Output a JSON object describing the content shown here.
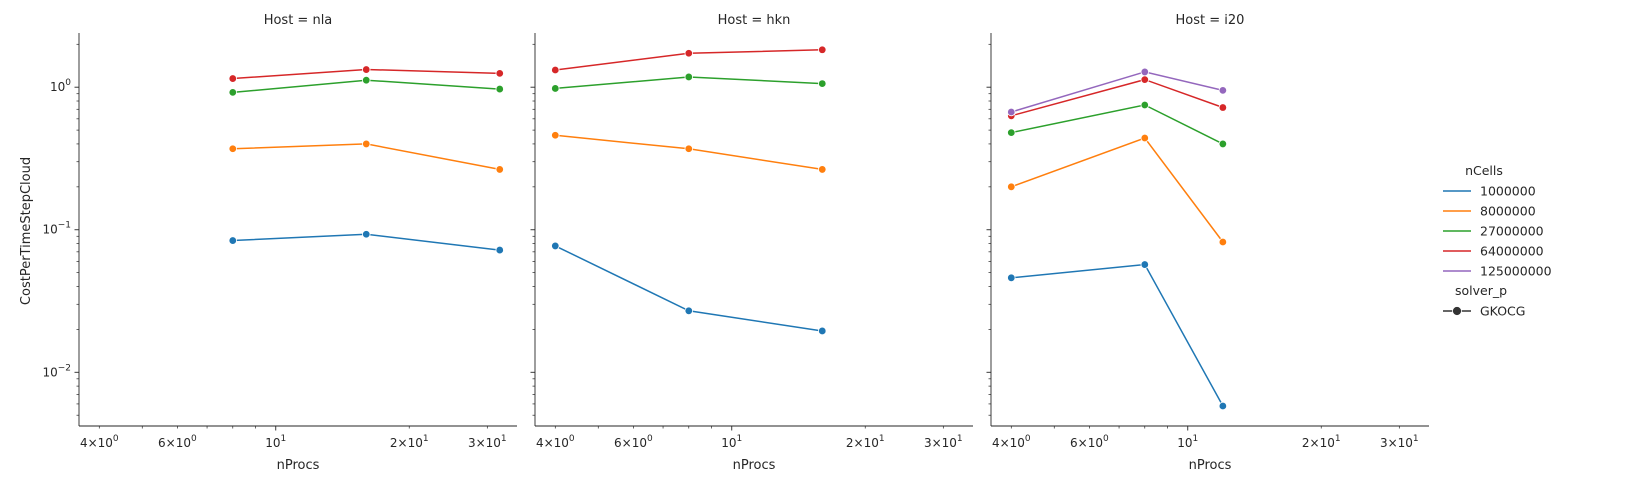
{
  "chart_data": {
    "type": "line",
    "xscale": "log",
    "yscale": "log",
    "xlim": [
      3.6,
      35
    ],
    "ylim": [
      0.0042,
      2.4
    ],
    "xlabel": "nProcs",
    "ylabel": "CostPerTimeStepCloud",
    "x_ticks": [
      {
        "value": 4,
        "base": "4",
        "exp": "0"
      },
      {
        "value": 6,
        "base": "6",
        "exp": "0"
      },
      {
        "value": 10,
        "base": "10",
        "exp": "1"
      },
      {
        "value": 20,
        "base": "2",
        "exp": "1"
      },
      {
        "value": 30,
        "base": "3",
        "exp": "1"
      }
    ],
    "y_ticks": [
      {
        "value": 1,
        "base": "10",
        "exp": "0"
      },
      {
        "value": 0.1,
        "base": "10",
        "exp": "−1"
      },
      {
        "value": 0.01,
        "base": "10",
        "exp": "−2"
      }
    ],
    "legend": {
      "placement": "right",
      "hue_title": "nCells",
      "style_title": "solver_p",
      "style_items": [
        "GKOCG"
      ]
    },
    "series_colors": {
      "1000000": "#1f77b4",
      "8000000": "#ff7f0e",
      "27000000": "#2ca02c",
      "64000000": "#d62728",
      "125000000": "#9467bd"
    },
    "series_order": [
      "1000000",
      "8000000",
      "27000000",
      "64000000",
      "125000000"
    ],
    "panels": [
      {
        "title": "Host = nla",
        "series": [
          {
            "name": "1000000",
            "x": [
              8,
              16,
              32
            ],
            "y": [
              0.084,
              0.093,
              0.072
            ]
          },
          {
            "name": "8000000",
            "x": [
              8,
              16,
              32
            ],
            "y": [
              0.37,
              0.4,
              0.265
            ]
          },
          {
            "name": "27000000",
            "x": [
              8,
              16,
              32
            ],
            "y": [
              0.92,
              1.12,
              0.97
            ]
          },
          {
            "name": "64000000",
            "x": [
              8,
              16,
              32
            ],
            "y": [
              1.15,
              1.33,
              1.25
            ]
          }
        ]
      },
      {
        "title": "Host = hkn",
        "series": [
          {
            "name": "1000000",
            "x": [
              4,
              8,
              16
            ],
            "y": [
              0.077,
              0.027,
              0.0195
            ]
          },
          {
            "name": "8000000",
            "x": [
              4,
              8,
              16
            ],
            "y": [
              0.46,
              0.37,
              0.265
            ]
          },
          {
            "name": "27000000",
            "x": [
              4,
              8,
              16
            ],
            "y": [
              0.98,
              1.18,
              1.06
            ]
          },
          {
            "name": "64000000",
            "x": [
              4,
              8,
              16
            ],
            "y": [
              1.32,
              1.73,
              1.83
            ]
          }
        ]
      },
      {
        "title": "Host = i20",
        "series": [
          {
            "name": "1000000",
            "x": [
              4,
              8,
              12
            ],
            "y": [
              0.046,
              0.057,
              0.0058
            ]
          },
          {
            "name": "8000000",
            "x": [
              4,
              8,
              12
            ],
            "y": [
              0.2,
              0.44,
              0.082
            ]
          },
          {
            "name": "27000000",
            "x": [
              4,
              8,
              12
            ],
            "y": [
              0.48,
              0.75,
              0.4
            ]
          },
          {
            "name": "64000000",
            "x": [
              4,
              8,
              12
            ],
            "y": [
              0.63,
              1.13,
              0.72
            ]
          },
          {
            "name": "125000000",
            "x": [
              4,
              8,
              12
            ],
            "y": [
              0.67,
              1.28,
              0.95
            ]
          }
        ]
      }
    ]
  }
}
